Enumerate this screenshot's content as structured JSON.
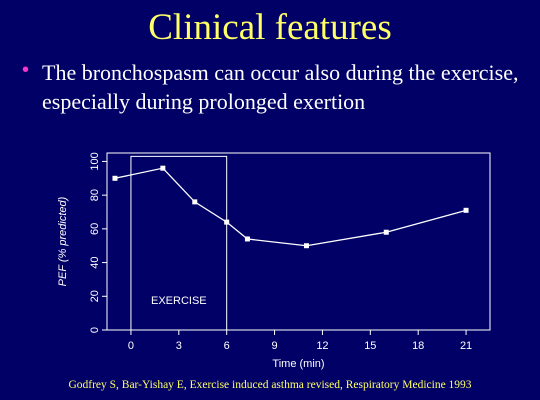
{
  "slide": {
    "title": "Clinical features",
    "bullet": "The bronchospasm can occur also during the exercise, especially during prolonged exertion",
    "citation": "Godfrey S, Bar-Yishay E, Exercise induced asthma revised, Respiratory Medicine 1993"
  },
  "colors": {
    "background": "#000066",
    "title": "#ffff66",
    "bullet_marker": "#ff33cc",
    "text": "#ffffff",
    "citation": "#ffff66"
  },
  "chart_data": {
    "type": "line",
    "title": "",
    "xlabel": "Time (min)",
    "ylabel": "PEF (% predicted)",
    "xlim": [
      -1.5,
      22.5
    ],
    "ylim": [
      0,
      105
    ],
    "xticks": [
      0,
      3,
      6,
      9,
      12,
      15,
      18,
      21
    ],
    "yticks": [
      0,
      20,
      40,
      60,
      80,
      100
    ],
    "grid": false,
    "series": [
      {
        "x": [
          -1,
          2,
          4,
          6,
          7.3,
          11,
          16,
          21
        ],
        "y": [
          90,
          96,
          76,
          64,
          54,
          50,
          58,
          71
        ]
      }
    ],
    "annotations": [
      {
        "label": "EXERCISE",
        "x_start": 0,
        "x_end": 6,
        "y_top": 103
      }
    ]
  }
}
